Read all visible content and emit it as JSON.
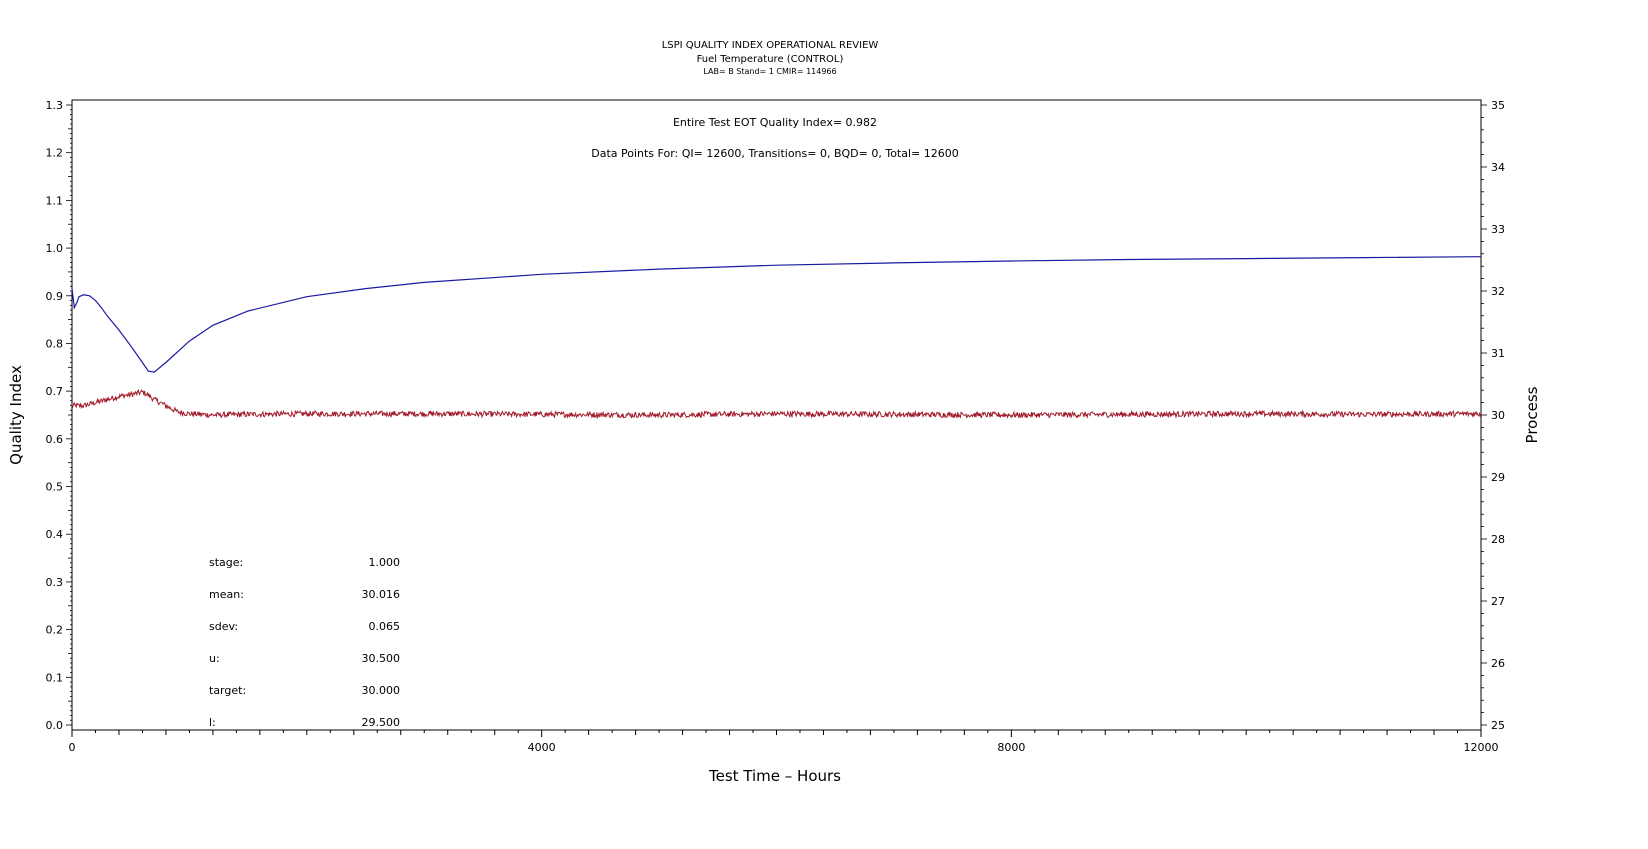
{
  "chart_data": {
    "type": "line",
    "title": "LSPI QUALITY INDEX OPERATIONAL REVIEW",
    "subtitle": "Fuel Temperature (CONTROL)",
    "subtitle2": "LAB= B Stand= 1 CMIR= 114966",
    "xlabel": "Test Time – Hours",
    "ylabel_left": "Quality Index",
    "ylabel_right": "Process",
    "xlim": [
      0,
      12000
    ],
    "ylim_left": [
      0.0,
      1.3
    ],
    "ylim_right": [
      25,
      35
    ],
    "x_ticks": [
      "0",
      "4000",
      "8000",
      "12000"
    ],
    "y_left_ticks": [
      "0.0",
      "0.1",
      "0.2",
      "0.3",
      "0.4",
      "0.5",
      "0.6",
      "0.7",
      "0.8",
      "0.9",
      "1.0",
      "1.1",
      "1.2",
      "1.3"
    ],
    "y_right_ticks": [
      "25",
      "26",
      "27",
      "28",
      "29",
      "30",
      "31",
      "32",
      "33",
      "34",
      "35"
    ],
    "annotations": {
      "eot": "Entire Test EOT Quality Index=   0.982",
      "points": "Data Points For: QI= 12600, Transitions=      0, BQD=      0, Total= 12600"
    },
    "stats": [
      {
        "label": "stage:",
        "value": "1.000"
      },
      {
        "label": "mean:",
        "value": "30.016"
      },
      {
        "label": "sdev:",
        "value": "0.065"
      },
      {
        "label": "u:",
        "value": "30.500"
      },
      {
        "label": "target:",
        "value": "30.000"
      },
      {
        "label": "l:",
        "value": "29.500"
      }
    ],
    "series": [
      {
        "axis": "left",
        "color": "#1a1aa0",
        "x": [
          0,
          20,
          40,
          60,
          100,
          150,
          200,
          250,
          300,
          400,
          500,
          600,
          650,
          700,
          800,
          1000,
          1200,
          1500,
          2000,
          2500,
          3000,
          4000,
          5000,
          6000,
          7000,
          8000,
          9000,
          10000,
          11000,
          12000
        ],
        "y": [
          0.915,
          0.875,
          0.885,
          0.898,
          0.902,
          0.9,
          0.89,
          0.875,
          0.858,
          0.828,
          0.795,
          0.76,
          0.742,
          0.74,
          0.76,
          0.805,
          0.838,
          0.868,
          0.898,
          0.915,
          0.928,
          0.945,
          0.956,
          0.964,
          0.969,
          0.973,
          0.976,
          0.978,
          0.98,
          0.982
        ]
      },
      {
        "axis": "right",
        "color": "#a01a2a",
        "x": [
          0,
          100,
          200,
          300,
          400,
          500,
          600,
          650,
          700,
          800,
          900,
          1000,
          1100,
          1200,
          1500,
          2000,
          3000,
          4000,
          5000,
          6000,
          7000,
          8000,
          9000,
          10000,
          11000,
          12000
        ],
        "y": [
          30.15,
          30.15,
          30.2,
          30.25,
          30.3,
          30.33,
          30.37,
          30.32,
          30.25,
          30.15,
          30.05,
          30.02,
          30.01,
          30.0,
          30.01,
          30.02,
          30.02,
          30.01,
          30.0,
          30.02,
          30.01,
          30.0,
          30.01,
          30.02,
          30.01,
          30.02
        ]
      }
    ]
  }
}
